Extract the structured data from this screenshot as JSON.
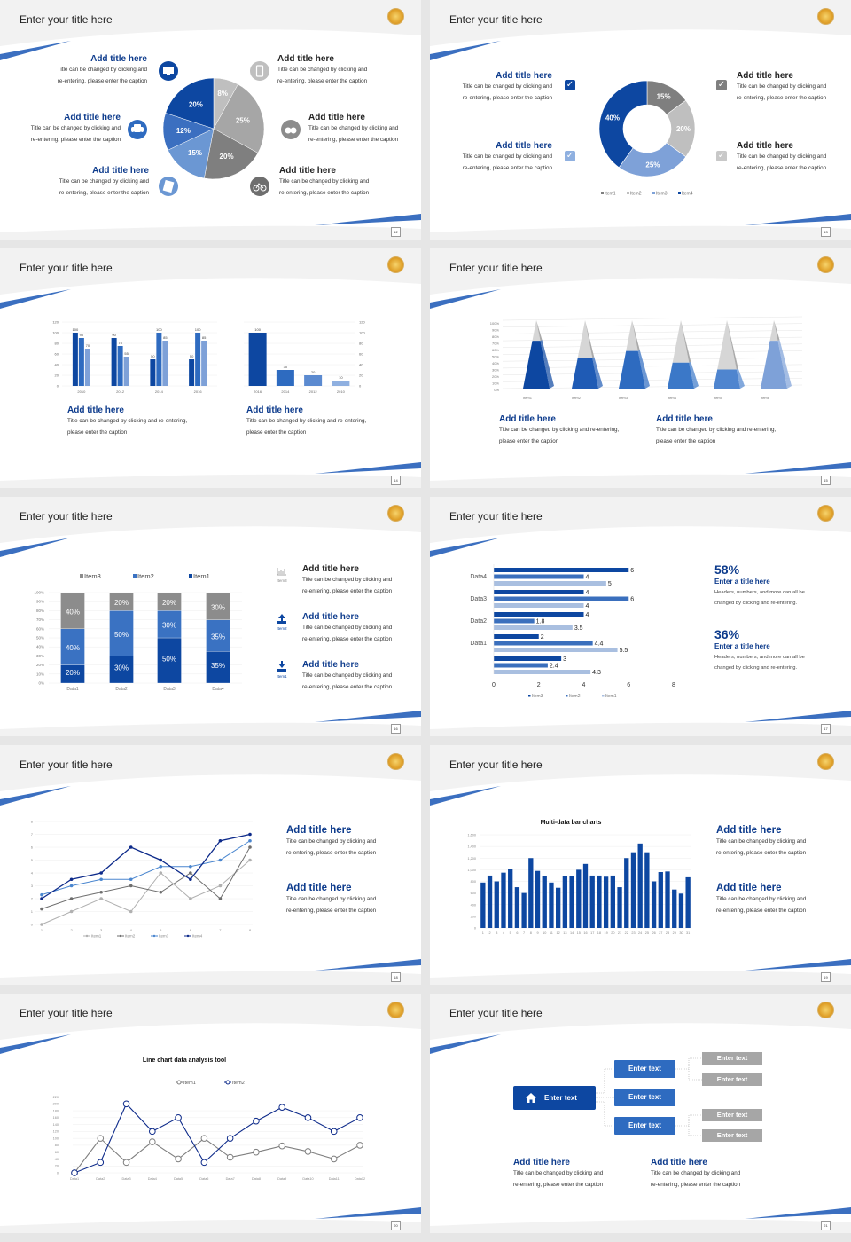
{
  "colors": {
    "navy": "#0d47a1",
    "blue": "#2e6bc0",
    "light_blue": "#7ea1d8",
    "gray": "#7f7f7f",
    "light_gray": "#bfbfbf",
    "title_blue": "#0d3b8c"
  },
  "slides": [
    {
      "title": "Enter your title here",
      "page": "12",
      "icons": [
        "monitor-icon",
        "car-icon",
        "book-icon",
        "phone-icon",
        "binoculars-icon",
        "bicycle-icon"
      ],
      "blocks": [
        {
          "title": "Add title here",
          "caption": "Title can be changed by clicking and\nre-entering, please enter the caption"
        },
        {
          "title": "Add title here",
          "caption": "Title can be changed by clicking and\nre-entering, please enter the caption"
        },
        {
          "title": "Add title here",
          "caption": "Title can be changed by clicking and\nre-entering, please enter the caption"
        },
        {
          "title": "Add title here",
          "caption": "Title can be changed by clicking and\nre-entering, please enter the caption"
        },
        {
          "title": "Add title here",
          "caption": "Title can be changed by clicking and\nre-entering, please enter the caption"
        },
        {
          "title": "Add title here",
          "caption": "Title can be changed by clicking and\nre-entering, please enter the caption"
        }
      ]
    },
    {
      "title": "Enter your title here",
      "page": "13",
      "checkmark": "✓",
      "blocks": [
        {
          "title": "Add title here",
          "caption": "Title can be changed by clicking and\nre-entering, please enter the caption"
        },
        {
          "title": "Add title here",
          "caption": "Title can be changed by clicking and\nre-entering, please enter the caption"
        },
        {
          "title": "Add title here",
          "caption": "Title can be changed by clicking and\nre-entering, please enter the caption"
        },
        {
          "title": "Add title here",
          "caption": "Title can be changed by clicking and\nre-entering, please enter the caption"
        }
      ]
    },
    {
      "title": "Enter your title here",
      "page": "14",
      "blocks": [
        {
          "title": "Add title here",
          "caption": "Title can be changed by clicking and re-entering,\nplease enter the caption"
        },
        {
          "title": "Add title here",
          "caption": "Title can be changed by clicking and re-entering,\nplease enter the caption"
        }
      ]
    },
    {
      "title": "Enter your title here",
      "page": "15",
      "blocks": [
        {
          "title": "Add title here",
          "caption": "Title can be changed by clicking and re-entering,\nplease enter the caption"
        },
        {
          "title": "Add title here",
          "caption": "Title can be changed by clicking and re-entering,\nplease enter the caption"
        }
      ]
    },
    {
      "title": "Enter your title here",
      "page": "16",
      "icon_labels": [
        "Item3",
        "Item2",
        "Item1"
      ],
      "blocks": [
        {
          "title": "Add title here",
          "caption": "Title can be changed by clicking and\nre-entering, please enter the caption"
        },
        {
          "title": "Add title here",
          "caption": "Title can be changed by clicking and\nre-entering, please enter the caption"
        },
        {
          "title": "Add title here",
          "caption": "Title can be changed by clicking and\nre-entering, please enter the caption"
        }
      ]
    },
    {
      "title": "Enter your title here",
      "page": "17",
      "stats": [
        {
          "value": "58%",
          "title": "Enter a title here",
          "caption": "Headers, numbers, and more can all be\nchanged by clicking and re-entering."
        },
        {
          "value": "36%",
          "title": "Enter a title here",
          "caption": "Headers, numbers, and more can all be\nchanged by clicking and re-entering."
        }
      ]
    },
    {
      "title": "Enter your title here",
      "page": "18",
      "blocks": [
        {
          "title": "Add title here",
          "caption": "Title can be changed by clicking and\nre-entering, please enter the caption"
        },
        {
          "title": "Add title here",
          "caption": "Title can be changed by clicking and\nre-entering, please enter the caption"
        }
      ]
    },
    {
      "title": "Enter your title here",
      "page": "19",
      "blocks": [
        {
          "title": "Add title here",
          "caption": "Title can be changed by clicking and\nre-entering, please enter the caption"
        },
        {
          "title": "Add title here",
          "caption": "Title can be changed by clicking and\nre-entering, please enter the caption"
        }
      ]
    },
    {
      "title": "Enter your title here",
      "page": "20"
    },
    {
      "title": "Enter your title here",
      "page": "21",
      "flow": {
        "root": "Enter text",
        "mid": [
          "Enter text",
          "Enter text",
          "Enter text"
        ],
        "leaves": [
          "Enter text",
          "Enter text",
          "Enter text",
          "Enter text"
        ]
      },
      "blocks": [
        {
          "title": "Add title here",
          "caption": "Title can be changed by clicking and\nre-entering, please enter the caption"
        },
        {
          "title": "Add title here",
          "caption": "Title can be changed by clicking and\nre-entering, please enter the caption"
        }
      ]
    }
  ],
  "chart_data": [
    {
      "type": "pie",
      "values": [
        8,
        25,
        20,
        15,
        12,
        20
      ],
      "data_labels": [
        "8%",
        "25%",
        "20%",
        "15%",
        "12%",
        "20%"
      ],
      "colors": [
        "#bfbfbf",
        "#a6a6a6",
        "#7f7f7f",
        "#6b97d3",
        "#3b6fc0",
        "#0d47a1"
      ]
    },
    {
      "type": "pie",
      "variant": "donut",
      "categories": [
        "Item1",
        "Item2",
        "Item3",
        "Item4"
      ],
      "values": [
        15,
        20,
        25,
        40
      ],
      "data_labels": [
        "15%",
        "20%",
        "25%",
        "40%"
      ],
      "colors": [
        "#7f7f7f",
        "#bfbfbf",
        "#7ea1d8",
        "#0d47a1"
      ],
      "legend": "bottom"
    },
    {
      "type": "bar",
      "categories": [
        "2010",
        "2012",
        "2014",
        "2016"
      ],
      "series": [
        {
          "values": [
            100,
            90,
            50,
            50
          ]
        },
        {
          "values": [
            90,
            75,
            100,
            100
          ]
        },
        {
          "values": [
            70,
            55,
            85,
            85
          ]
        }
      ],
      "colors": [
        "#0d47a1",
        "#2e6bc0",
        "#7ea1d8"
      ],
      "ylim": [
        0,
        120
      ],
      "yticks": [
        0,
        20,
        40,
        60,
        80,
        100,
        120
      ],
      "grid": true
    },
    {
      "type": "bar",
      "categories": [
        "2016",
        "2014",
        "2012",
        "2010"
      ],
      "values": [
        100,
        30,
        20,
        10
      ],
      "colors": [
        "#0d47a1",
        "#2e6bc0",
        "#5b8ad0",
        "#8fb0e0"
      ],
      "ylim": [
        0,
        120
      ],
      "yticks": [
        0,
        20,
        40,
        60,
        80,
        100,
        120
      ],
      "yaxis": "right"
    },
    {
      "type": "bar",
      "variant": "3d-pyramid",
      "categories": [
        "Item1",
        "Item2",
        "Item3",
        "Item4",
        "Item5",
        "Item6"
      ],
      "values": [
        70,
        45,
        55,
        38,
        28,
        70
      ],
      "ylim": [
        0,
        100
      ],
      "yticks": [
        "0%",
        "10%",
        "20%",
        "30%",
        "40%",
        "50%",
        "60%",
        "70%",
        "80%",
        "90%",
        "100%"
      ],
      "colors": [
        "#0d47a1",
        "#1f5bb5",
        "#2e6bc0",
        "#3b78c8",
        "#4f85cf",
        "#7ea1d8"
      ]
    },
    {
      "type": "bar",
      "variant": "stacked-100",
      "categories": [
        "Data1",
        "Data2",
        "Data3",
        "Data4"
      ],
      "series": [
        {
          "name": "Item1",
          "values": [
            20,
            30,
            50,
            35
          ]
        },
        {
          "name": "Item2",
          "values": [
            40,
            50,
            30,
            35
          ]
        },
        {
          "name": "Item3",
          "values": [
            40,
            20,
            20,
            30
          ]
        }
      ],
      "colors": [
        "#0d47a1",
        "#3a72c2",
        "#8c8c8c"
      ],
      "ylim": [
        0,
        100
      ],
      "yticks": [
        "0%",
        "10%",
        "20%",
        "30%",
        "40%",
        "50%",
        "60%",
        "70%",
        "80%",
        "90%",
        "100%"
      ],
      "legend": "top"
    },
    {
      "type": "bar",
      "variant": "horizontal",
      "categories": [
        "Data4",
        "Data3",
        "Data2",
        "Data1",
        ""
      ],
      "series": [
        {
          "name": "Item3",
          "values": [
            6,
            4,
            4,
            2,
            3
          ]
        },
        {
          "name": "Item2",
          "values": [
            4,
            6,
            1.8,
            4.4,
            2.4
          ]
        },
        {
          "name": "Item1",
          "values": [
            5,
            4,
            3.5,
            5.5,
            4.3
          ]
        }
      ],
      "colors": [
        "#0d47a1",
        "#3a6fbd",
        "#a9bfe0"
      ],
      "xlim": [
        0,
        8
      ],
      "xticks": [
        0,
        2,
        4,
        6,
        8
      ],
      "legend": "bottom"
    },
    {
      "type": "line",
      "x": [
        1,
        2,
        3,
        4,
        5,
        6,
        7,
        8
      ],
      "series": [
        {
          "name": "Item1",
          "values": [
            0,
            1,
            2,
            1,
            4,
            2,
            3,
            5
          ]
        },
        {
          "name": "Item2",
          "values": [
            1.2,
            2,
            2.5,
            3,
            2.5,
            4,
            2,
            6
          ]
        },
        {
          "name": "Item3",
          "values": [
            2.3,
            3,
            3.5,
            3.5,
            4.5,
            4.5,
            5,
            6.5
          ]
        },
        {
          "name": "Item4",
          "values": [
            2,
            3.5,
            4,
            6,
            5,
            3.5,
            6.5,
            7
          ]
        }
      ],
      "colors": [
        "#b0b0b0",
        "#6e6e6e",
        "#4a86cf",
        "#0d2a8a"
      ],
      "ylim": [
        0,
        8
      ],
      "yticks": [
        0,
        1,
        2,
        3,
        4,
        5,
        6,
        7,
        8
      ],
      "legend": "bottom",
      "grid": true
    },
    {
      "type": "bar",
      "title": "Multi-data bar charts",
      "categories": [
        "1",
        "2",
        "3",
        "4",
        "5",
        "6",
        "7",
        "8",
        "9",
        "10",
        "11",
        "12",
        "13",
        "14",
        "15",
        "16",
        "17",
        "18",
        "19",
        "20",
        "21",
        "22",
        "23",
        "24",
        "25",
        "26",
        "27",
        "28",
        "29",
        "30",
        "31"
      ],
      "values": [
        780,
        900,
        800,
        950,
        1020,
        700,
        600,
        1200,
        980,
        890,
        780,
        690,
        890,
        890,
        1000,
        1100,
        900,
        900,
        880,
        900,
        700,
        1200,
        1300,
        1450,
        1300,
        800,
        960,
        970,
        660,
        590,
        870
      ],
      "color": "#0d47a1",
      "ylim": [
        0,
        1600
      ],
      "yticks": [
        "0",
        "200",
        "400",
        "600",
        "800",
        "1,000",
        "1,200",
        "1,400",
        "1,600"
      ],
      "grid": true
    },
    {
      "type": "line",
      "title": "Line chart data analysis tool",
      "categories": [
        "Data1",
        "Data2",
        "Data3",
        "Data4",
        "Data5",
        "Data6",
        "Data7",
        "Data8",
        "Data9",
        "Data10",
        "Data11",
        "Data12"
      ],
      "series": [
        {
          "name": "Item1",
          "values": [
            0,
            100,
            30,
            90,
            40,
            100,
            45,
            60,
            78,
            62,
            40,
            80
          ]
        },
        {
          "name": "Item2",
          "values": [
            0,
            30,
            200,
            120,
            160,
            30,
            100,
            150,
            190,
            160,
            120,
            160
          ]
        }
      ],
      "colors": [
        "#7f7f7f",
        "#0d2a8a"
      ],
      "ylim": [
        0,
        220
      ],
      "yticks": [
        0,
        20,
        40,
        60,
        80,
        100,
        120,
        140,
        160,
        180,
        200,
        220
      ],
      "legend": "top",
      "grid": true
    }
  ]
}
